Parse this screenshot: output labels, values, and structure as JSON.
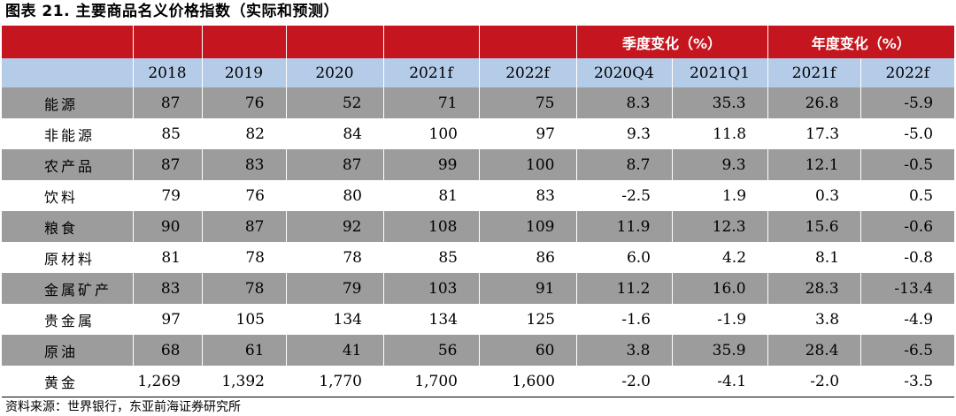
{
  "title": "图表 21. 主要商品名义价格指数（实际和预测）",
  "header": {
    "group_quarter": "季度变化（%）",
    "group_year": "年度变化（%）",
    "columns": [
      "2018",
      "2019",
      "2020",
      "2021f",
      "2022f",
      "2020Q4",
      "2021Q1",
      "2021f",
      "2022f"
    ]
  },
  "rows": [
    {
      "name": "能源",
      "values": [
        "87",
        "76",
        "52",
        "71",
        "75",
        "8.3",
        "35.3",
        "26.8",
        "-5.9"
      ]
    },
    {
      "name": "非能源",
      "values": [
        "85",
        "82",
        "84",
        "100",
        "97",
        "9.3",
        "11.8",
        "17.3",
        "-5.0"
      ]
    },
    {
      "name": "农产品",
      "values": [
        "87",
        "83",
        "87",
        "99",
        "100",
        "8.7",
        "9.3",
        "12.1",
        "-0.5"
      ]
    },
    {
      "name": "饮料",
      "values": [
        "79",
        "76",
        "80",
        "81",
        "83",
        "-2.5",
        "1.9",
        "0.3",
        "0.5"
      ]
    },
    {
      "name": "粮食",
      "values": [
        "90",
        "87",
        "92",
        "108",
        "109",
        "11.9",
        "12.3",
        "15.6",
        "-0.6"
      ]
    },
    {
      "name": "原材料",
      "values": [
        "81",
        "78",
        "78",
        "85",
        "86",
        "6.0",
        "4.2",
        "8.1",
        "-0.8"
      ]
    },
    {
      "name": "金属矿产",
      "values": [
        "83",
        "78",
        "79",
        "103",
        "91",
        "11.2",
        "16.0",
        "28.3",
        "-13.4"
      ]
    },
    {
      "name": "贵金属",
      "values": [
        "97",
        "105",
        "134",
        "134",
        "125",
        "-1.6",
        "-1.9",
        "3.8",
        "-4.9"
      ]
    },
    {
      "name": "原油",
      "values": [
        "68",
        "61",
        "41",
        "56",
        "60",
        "3.8",
        "35.9",
        "28.4",
        "-6.5"
      ]
    },
    {
      "name": "黄金",
      "values": [
        "1,269",
        "1,392",
        "1,770",
        "1,700",
        "1,600",
        "-2.0",
        "-4.1",
        "-2.0",
        "-3.5"
      ]
    }
  ],
  "source": "资料来源：世界银行，东亚前海证券研究所",
  "colors": {
    "header_red": "#c5161f",
    "header_blue": "#b4cce8",
    "row_shade": "#9c9c9c"
  }
}
